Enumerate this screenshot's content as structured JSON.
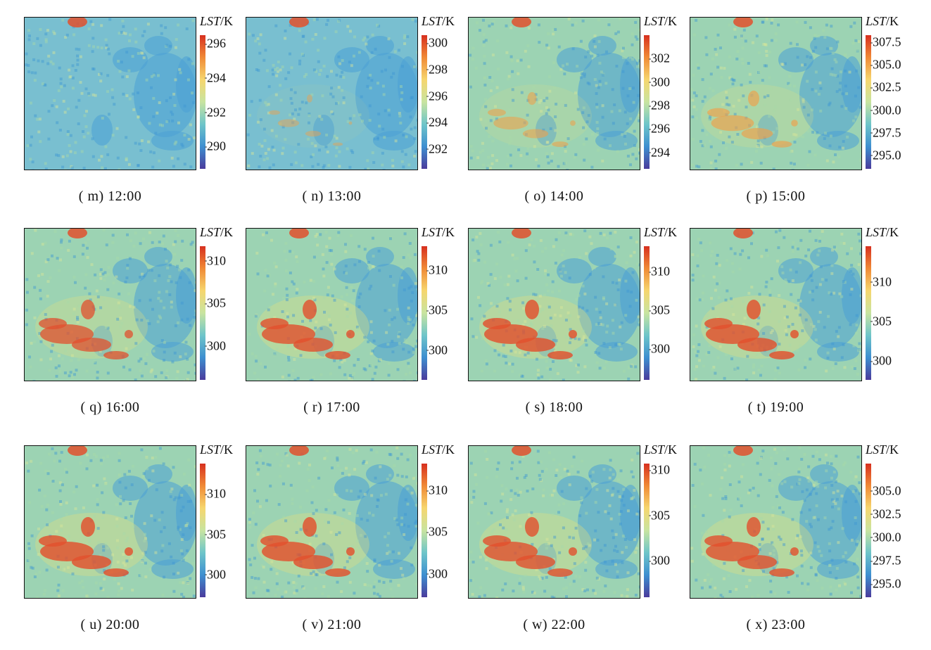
{
  "colorbar_label_main": "LST",
  "colorbar_label_unit": "/K",
  "colors": {
    "high": "#d7301f",
    "mid": "#c8e4a0",
    "low": "#4a3b9c",
    "map_base": "#7fc7c2"
  },
  "panels": [
    {
      "caption": "( m)  12:00",
      "vmin": 288.7,
      "vmax": 296.5,
      "ticks": [
        "296",
        "294",
        "292",
        "290"
      ],
      "tick_values": [
        296,
        294,
        292,
        290
      ],
      "warm_level": 0.05
    },
    {
      "caption": "( n)  13:00",
      "vmin": 290.5,
      "vmax": 300.6,
      "ticks": [
        "300",
        "298",
        "296",
        "294",
        "292"
      ],
      "tick_values": [
        300,
        298,
        296,
        294,
        292
      ],
      "warm_level": 0.2
    },
    {
      "caption": "( o)  14:00",
      "vmin": 292.6,
      "vmax": 304.0,
      "ticks": [
        "302",
        "300",
        "298",
        "296",
        "294"
      ],
      "tick_values": [
        302,
        300,
        298,
        296,
        294
      ],
      "warm_level": 0.45
    },
    {
      "caption": "( p)  15:00",
      "vmin": 293.5,
      "vmax": 308.3,
      "ticks": [
        "307.5",
        "305.0",
        "302.5",
        "300.0",
        "297.5",
        "295.0"
      ],
      "tick_values": [
        307.5,
        305.0,
        302.5,
        300.0,
        297.5,
        295.0
      ],
      "warm_level": 0.6
    },
    {
      "caption": "( q)  16:00",
      "vmin": 296.0,
      "vmax": 311.7,
      "ticks": [
        "310",
        "305",
        "300"
      ],
      "tick_values": [
        310,
        305,
        300
      ],
      "warm_level": 0.8
    },
    {
      "caption": "( r)  17:00",
      "vmin": 296.3,
      "vmax": 313.0,
      "ticks": [
        "310",
        "305",
        "300"
      ],
      "tick_values": [
        310,
        305,
        300
      ],
      "warm_level": 0.9
    },
    {
      "caption": "( s)  18:00",
      "vmin": 296.0,
      "vmax": 313.3,
      "ticks": [
        "310",
        "305",
        "300"
      ],
      "tick_values": [
        310,
        305,
        300
      ],
      "warm_level": 0.95
    },
    {
      "caption": "( t)  19:00",
      "vmin": 297.6,
      "vmax": 314.5,
      "ticks": [
        "310",
        "305",
        "300"
      ],
      "tick_values": [
        310,
        305,
        300
      ],
      "warm_level": 0.95
    },
    {
      "caption": "( u)  20:00",
      "vmin": 297.2,
      "vmax": 313.8,
      "ticks": [
        "310",
        "305",
        "300"
      ],
      "tick_values": [
        310,
        305,
        300
      ],
      "warm_level": 0.95
    },
    {
      "caption": "( v)  21:00",
      "vmin": 297.2,
      "vmax": 313.2,
      "ticks": [
        "310",
        "305",
        "300"
      ],
      "tick_values": [
        310,
        305,
        300
      ],
      "warm_level": 0.95
    },
    {
      "caption": "( w)  22:00",
      "vmin": 296.0,
      "vmax": 310.7,
      "ticks": [
        "310",
        "305",
        "300"
      ],
      "tick_values": [
        310,
        305,
        300
      ],
      "warm_level": 0.9
    },
    {
      "caption": "( x)  23:00",
      "vmin": 293.6,
      "vmax": 307.9,
      "ticks": [
        "305.0",
        "302.5",
        "300.0",
        "297.5",
        "295.0"
      ],
      "tick_values": [
        305.0,
        302.5,
        300.0,
        297.5,
        295.0
      ],
      "warm_level": 0.9
    }
  ]
}
